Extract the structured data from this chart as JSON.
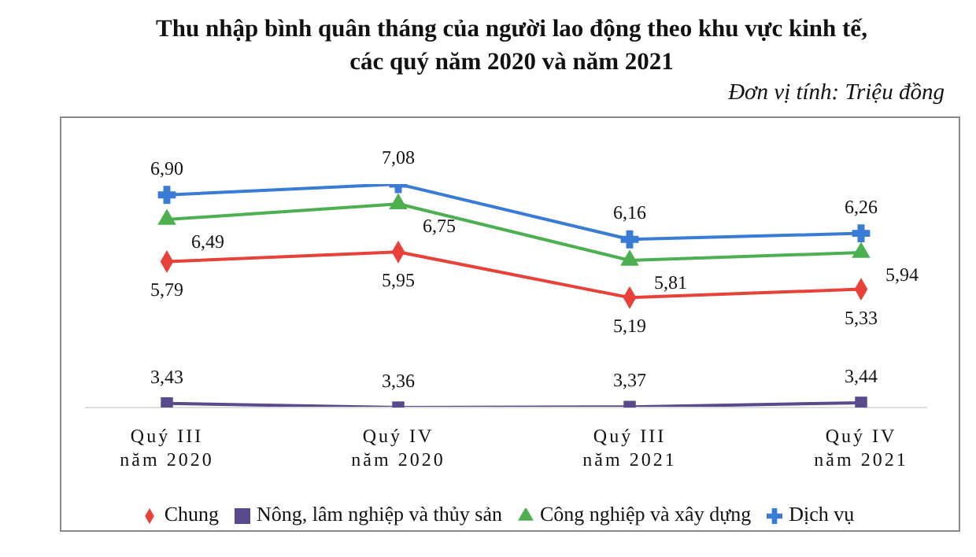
{
  "chart_data": {
    "type": "line",
    "title": "Thu nhập bình quân tháng của người lao động theo khu vực kinh tế,\ncác quý năm 2020 và năm 2021",
    "annotations": [
      "Đơn vị tính: Triệu đồng"
    ],
    "categories": [
      "Quý III\nnăm 2020",
      "Quý IV\nnăm 2020",
      "Quý III\nnăm 2021",
      "Quý IV\nnăm 2021"
    ],
    "tick_labels": "x",
    "grid": false,
    "legend": "bottom",
    "series": [
      {
        "name": "Chung",
        "color": "#e8413a",
        "marker": "diamond",
        "values": [
          5.79,
          5.95,
          5.19,
          5.33
        ],
        "value_labels": [
          "5,79",
          "5,95",
          "5,19",
          "5,33"
        ]
      },
      {
        "name": "Nông, lâm nghiệp và thủy sản",
        "color": "#5b4a8b",
        "marker": "square",
        "values": [
          3.43,
          3.36,
          3.37,
          3.44
        ],
        "value_labels": [
          "3,43",
          "3,36",
          "3,37",
          "3,44"
        ]
      },
      {
        "name": "Công nghiệp và xây dựng",
        "color": "#4caf50",
        "marker": "triangle",
        "values": [
          6.49,
          6.75,
          5.81,
          5.94
        ],
        "value_labels": [
          "6,49",
          "6,75",
          "5,81",
          "5,94"
        ]
      },
      {
        "name": "Dịch vụ",
        "color": "#3a7bd5",
        "marker": "cross",
        "values": [
          6.9,
          7.08,
          6.16,
          6.26
        ],
        "value_labels": [
          "6,90",
          "7,08",
          "6,16",
          "6,26"
        ]
      }
    ]
  }
}
